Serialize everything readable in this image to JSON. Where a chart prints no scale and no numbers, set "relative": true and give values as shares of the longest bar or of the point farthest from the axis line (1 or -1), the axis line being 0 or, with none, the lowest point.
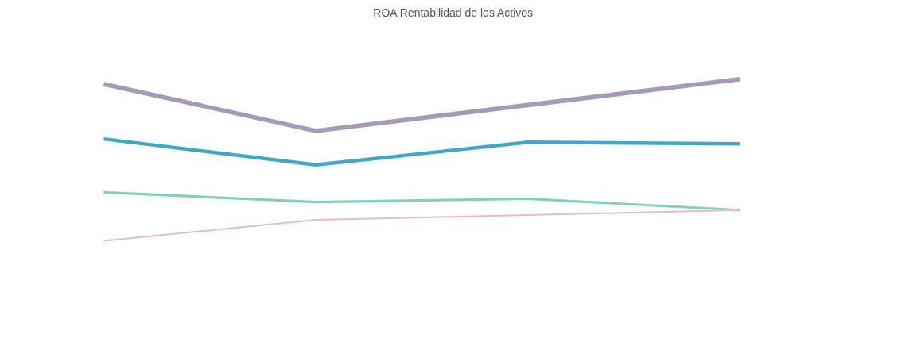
{
  "chart_data": {
    "type": "line",
    "title": "ROA Rentabilidad de los Activos",
    "relative": true,
    "categories": [
      null,
      null,
      null,
      null
    ],
    "series": [
      {
        "color": "#a899b8",
        "values": [
          0.97,
          0.68,
          0.84,
          1
        ]
      },
      {
        "color": "#3fa8c8",
        "values": [
          0.63,
          0.47,
          0.61,
          0.6
        ]
      },
      {
        "color": "#7fd0c0",
        "values": [
          0.3,
          0.24,
          0.26,
          0.19
        ]
      },
      {
        "color": "#e8b8c8",
        "values": [
          0,
          0.13,
          0.16,
          0.19
        ]
      }
    ],
    "grid": false,
    "marker": "none",
    "line_style": "solid"
  }
}
